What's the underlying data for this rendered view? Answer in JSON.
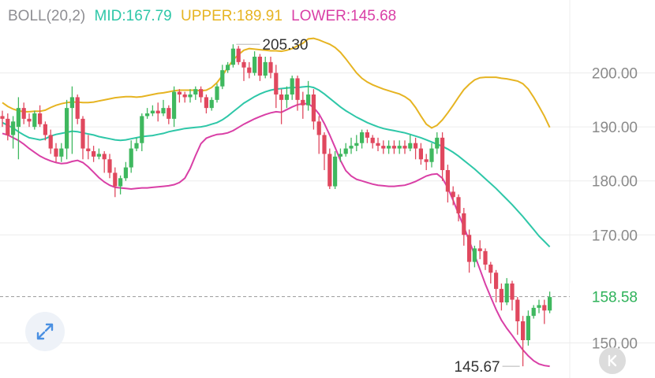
{
  "legend": {
    "name": "BOLL(20,2)",
    "mid": "MID:167.79",
    "upper": "UPPER:189.91",
    "lower": "LOWER:145.68"
  },
  "colors": {
    "name": "#8e8e93",
    "mid": "#2ec7a8",
    "upper": "#e6b422",
    "lower": "#d93fa6",
    "up": "#3fb85f",
    "down": "#e0485e",
    "last_price": "#2fb25a",
    "grid": "#ececec",
    "axis_text": "#8a8a8a"
  },
  "icons": {
    "expand": "expand-arrows-icon",
    "collapse": "chevron-left-icon"
  },
  "chart_data": {
    "type": "candlestick",
    "indicator": "Bollinger Bands (20,2)",
    "y_ticks": [
      "200.00",
      "190.00",
      "180.00",
      "170.00",
      "150.00"
    ],
    "ylim": [
      143.5,
      213.5
    ],
    "grid": true,
    "high_label": "205.30",
    "low_label": "145.67",
    "last_price": "158.58",
    "candles": [
      [
        192,
        191.5,
        193,
        190
      ],
      [
        191.5,
        188.5,
        192.5,
        187.5
      ],
      [
        188.5,
        191,
        192,
        186
      ],
      [
        190,
        193.5,
        195.5,
        184
      ],
      [
        193.5,
        191.5,
        194.5,
        190.5
      ],
      [
        191.5,
        191,
        192.5,
        190
      ],
      [
        190,
        192.5,
        193,
        189.5
      ],
      [
        192.5,
        190.5,
        194,
        190
      ],
      [
        190.5,
        188.5,
        191,
        187.5
      ],
      [
        188.5,
        186,
        189.5,
        185
      ],
      [
        186,
        184.5,
        187,
        183.5
      ],
      [
        184.5,
        186,
        187,
        183.5
      ],
      [
        186,
        193.5,
        195,
        184
      ],
      [
        193.5,
        195.5,
        197.5,
        185
      ],
      [
        195.5,
        191.5,
        196,
        190.5
      ],
      [
        191.5,
        186,
        192,
        184
      ],
      [
        186,
        185.5,
        188.5,
        184
      ],
      [
        185.5,
        184.5,
        186.5,
        183.5
      ],
      [
        184.5,
        185,
        186,
        184
      ],
      [
        185,
        184,
        185.5,
        181.5
      ],
      [
        184,
        181.5,
        185,
        180.5
      ],
      [
        181.5,
        179,
        182.5,
        177
      ],
      [
        179,
        180.5,
        181,
        177.5
      ],
      [
        180.5,
        182.5,
        183.5,
        180
      ],
      [
        182.5,
        186,
        187.5,
        181.5
      ],
      [
        186,
        187,
        188,
        185.5
      ],
      [
        187,
        192,
        192.5,
        185.5
      ],
      [
        192,
        192.5,
        193.5,
        191.5
      ],
      [
        192.5,
        193,
        194,
        192
      ],
      [
        193,
        192.5,
        194.5,
        191
      ],
      [
        192.5,
        193.5,
        195,
        192
      ],
      [
        193.5,
        191.5,
        194,
        190.5
      ],
      [
        191.5,
        196.5,
        197.5,
        190
      ],
      [
        196.5,
        196,
        197,
        194.5
      ],
      [
        196,
        195.5,
        196.5,
        194.5
      ],
      [
        195.5,
        196,
        197,
        194.5
      ],
      [
        196,
        197,
        197.5,
        195
      ],
      [
        197,
        195.5,
        197.5,
        194.5
      ],
      [
        195.5,
        193.5,
        196,
        192.5
      ],
      [
        193.5,
        195,
        195.5,
        193
      ],
      [
        195,
        197.5,
        198,
        194.5
      ],
      [
        197.5,
        200.5,
        201.5,
        197
      ],
      [
        200.5,
        201.5,
        202,
        200
      ],
      [
        201.5,
        204.5,
        205.3,
        201
      ],
      [
        204.5,
        202,
        205,
        201.5
      ],
      [
        202,
        201,
        202.5,
        198.5
      ],
      [
        201,
        200,
        202,
        199
      ],
      [
        200,
        203,
        204,
        199.5
      ],
      [
        203,
        199.5,
        203.5,
        198.5
      ],
      [
        199.5,
        202,
        203,
        199
      ],
      [
        202,
        200,
        203,
        199
      ],
      [
        200,
        196,
        201.5,
        193.5
      ],
      [
        196,
        195,
        197,
        190.5
      ],
      [
        195,
        196,
        197.5,
        193.5
      ],
      [
        196,
        199,
        199.5,
        195
      ],
      [
        199,
        195,
        199.5,
        193
      ],
      [
        195,
        194,
        196.5,
        191.5
      ],
      [
        194,
        196,
        198.5,
        193
      ],
      [
        196,
        191,
        197,
        189.5
      ],
      [
        191,
        188.5,
        192,
        185
      ],
      [
        188.5,
        185,
        189,
        182
      ],
      [
        185,
        179,
        186,
        178.5
      ],
      [
        179,
        184.5,
        185.5,
        178.5
      ],
      [
        184.5,
        185,
        186,
        183.5
      ],
      [
        185,
        186,
        187,
        184.5
      ],
      [
        186,
        186.5,
        188,
        185
      ],
      [
        186.5,
        187,
        188.5,
        185.5
      ],
      [
        187,
        189,
        189.5,
        186
      ],
      [
        189,
        188,
        189.5,
        187
      ],
      [
        188,
        187,
        188.5,
        186
      ],
      [
        187,
        186.5,
        188,
        185.5
      ],
      [
        186.5,
        186,
        187.5,
        185
      ],
      [
        186,
        186.5,
        187.5,
        185
      ],
      [
        186.5,
        186,
        187.5,
        185
      ],
      [
        186,
        186.5,
        187.5,
        185
      ],
      [
        186.5,
        186,
        187.5,
        185
      ],
      [
        186,
        187,
        188.5,
        185.5
      ],
      [
        187,
        186,
        188,
        184
      ],
      [
        186,
        184,
        187,
        183
      ],
      [
        184,
        183.5,
        185,
        182
      ],
      [
        183.5,
        186,
        187,
        182.5
      ],
      [
        186,
        188,
        189,
        185
      ],
      [
        188,
        182,
        189,
        180
      ],
      [
        182,
        178,
        183,
        176
      ],
      [
        178,
        177,
        179,
        175.5
      ],
      [
        177,
        174,
        177.5,
        172.5
      ],
      [
        174,
        170,
        175,
        168
      ],
      [
        170,
        165,
        171,
        163
      ],
      [
        165,
        167.5,
        168,
        164
      ],
      [
        167.5,
        167,
        169,
        165.5
      ],
      [
        167,
        164.5,
        167.5,
        163.5
      ],
      [
        164.5,
        163,
        165,
        161
      ],
      [
        163,
        160,
        163.5,
        157.5
      ],
      [
        160,
        157.5,
        161,
        156
      ],
      [
        157.5,
        161,
        162,
        157
      ],
      [
        161,
        158,
        161.5,
        156
      ],
      [
        158,
        154,
        158.5,
        151.5
      ],
      [
        154,
        150.5,
        155,
        145.67
      ],
      [
        150.5,
        155,
        156,
        149.5
      ],
      [
        155,
        156.5,
        157,
        154.5
      ],
      [
        156.5,
        157,
        158,
        155.5
      ],
      [
        157,
        156,
        158,
        153.5
      ],
      [
        156,
        158.5,
        159.5,
        155.5
      ]
    ],
    "mid": [
      190.8,
      190.3,
      189.8,
      189.1,
      188.5,
      188.0,
      187.8,
      187.6,
      187.8,
      188.3,
      188.6,
      188.8,
      189.0,
      189.2,
      189.1,
      188.9,
      188.7,
      188.5,
      188.2,
      188.0,
      187.8,
      187.6,
      187.5,
      187.6,
      187.8,
      188.0,
      188.2,
      188.3,
      188.4,
      188.6,
      188.8,
      189.1,
      189.3,
      189.5,
      189.7,
      189.8,
      189.9,
      190.0,
      190.2,
      190.5,
      190.8,
      191.3,
      192.0,
      192.8,
      193.6,
      194.4,
      195.0,
      195.6,
      196.1,
      196.5,
      196.8,
      197.0,
      197.1,
      197.2,
      197.3,
      197.3,
      197.4,
      197.5,
      197.3,
      196.8,
      196.1,
      195.3,
      194.5,
      193.7,
      193.0,
      192.4,
      191.8,
      191.3,
      190.8,
      190.4,
      190.0,
      189.7,
      189.5,
      189.3,
      189.1,
      188.9,
      188.6,
      188.3,
      188.0,
      187.6,
      187.2,
      186.8,
      186.4,
      185.9,
      185.3,
      184.6,
      183.8,
      183.0,
      182.2,
      181.3,
      180.4,
      179.5,
      178.6,
      177.6,
      176.6,
      175.6,
      174.5,
      173.4,
      172.2,
      171.0,
      169.8,
      168.8,
      167.79
    ],
    "upper": [
      194.5,
      193.8,
      193.3,
      193.0,
      192.8,
      192.8,
      192.9,
      192.9,
      193.1,
      193.6,
      194.0,
      194.3,
      194.5,
      194.6,
      194.6,
      194.5,
      194.5,
      194.6,
      194.8,
      195.0,
      195.2,
      195.4,
      195.5,
      195.6,
      195.6,
      195.5,
      195.6,
      195.8,
      196.0,
      196.2,
      196.3,
      196.5,
      196.7,
      196.8,
      196.8,
      196.8,
      196.8,
      196.7,
      196.8,
      197.3,
      198.2,
      199.5,
      201.0,
      202.4,
      203.4,
      204.2,
      204.5,
      204.4,
      204.3,
      204.2,
      204.1,
      204.1,
      204.0,
      204.2,
      204.5,
      205.0,
      205.5,
      206.3,
      206.4,
      206.1,
      205.7,
      205.3,
      204.7,
      203.8,
      202.6,
      201.3,
      200.0,
      199.0,
      198.3,
      197.8,
      197.4,
      197.0,
      196.7,
      196.4,
      196.1,
      195.6,
      194.9,
      193.6,
      192.0,
      190.5,
      189.8,
      190.3,
      191.3,
      192.6,
      194.0,
      195.5,
      196.9,
      197.9,
      198.7,
      199.1,
      199.2,
      199.2,
      199.2,
      199.0,
      198.9,
      198.7,
      198.5,
      198.0,
      197.0,
      195.5,
      193.8,
      192.0,
      189.91
    ],
    "lower": [
      188.8,
      188.5,
      188.0,
      187.5,
      186.8,
      186.0,
      185.3,
      184.6,
      184.1,
      183.7,
      183.4,
      183.2,
      183.3,
      183.6,
      183.8,
      183.4,
      182.6,
      181.6,
      180.6,
      179.8,
      179.2,
      178.8,
      178.7,
      178.6,
      178.5,
      178.6,
      178.7,
      178.7,
      178.8,
      178.9,
      179.0,
      179.1,
      179.3,
      179.7,
      180.5,
      182.3,
      184.7,
      186.9,
      187.9,
      188.3,
      188.6,
      188.7,
      188.9,
      189.3,
      189.9,
      190.5,
      191.0,
      191.5,
      191.9,
      192.3,
      192.6,
      192.8,
      192.7,
      193.2,
      193.7,
      194.1,
      194.3,
      194.3,
      193.6,
      192.4,
      190.6,
      188.5,
      186.2,
      183.8,
      181.9,
      180.9,
      180.3,
      180.0,
      179.7,
      179.4,
      179.2,
      179.1,
      179.0,
      179.0,
      179.1,
      179.2,
      179.5,
      179.9,
      180.4,
      180.9,
      181.2,
      181.3,
      180.5,
      178.7,
      176.4,
      173.9,
      171.5,
      168.9,
      166.3,
      163.6,
      160.9,
      158.5,
      156.2,
      154.2,
      152.7,
      151.4,
      150.0,
      148.7,
      147.6,
      146.7,
      146.1,
      145.8,
      145.68
    ]
  }
}
